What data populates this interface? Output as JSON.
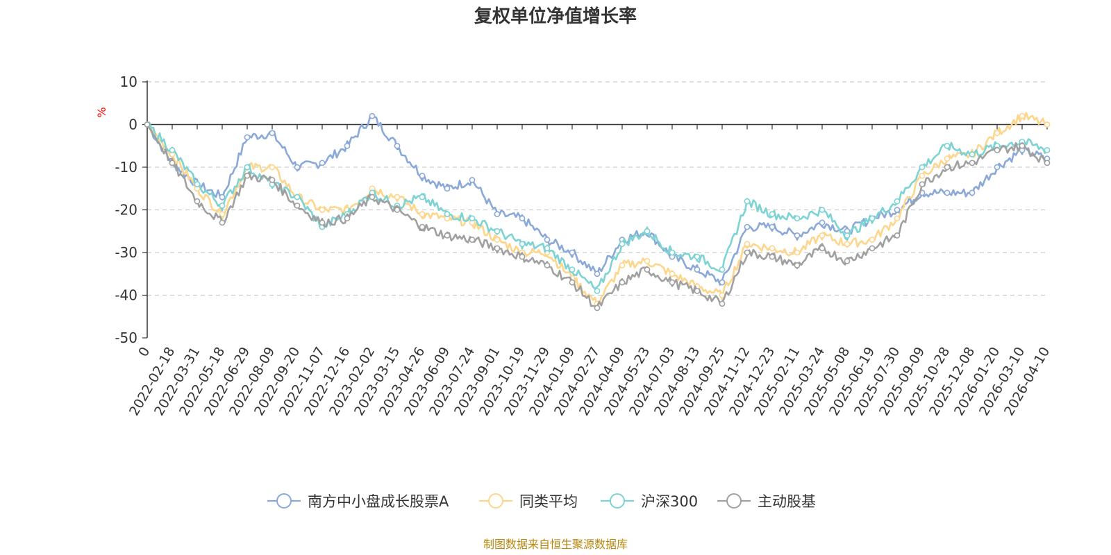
{
  "chart_data": {
    "type": "line",
    "title": "复权单位净值增长率",
    "ylabel": "%",
    "xlabel": "",
    "ylim": [
      -50,
      10
    ],
    "yticks": [
      10,
      0,
      -10,
      -20,
      -30,
      -40,
      -50
    ],
    "grid": true,
    "legend_position": "bottom",
    "categories": [
      "0",
      "2022-02-18",
      "2022-03-31",
      "2022-05-18",
      "2022-06-29",
      "2022-08-09",
      "2022-09-20",
      "2022-11-07",
      "2022-12-16",
      "2023-02-02",
      "2023-03-15",
      "2023-04-26",
      "2023-06-09",
      "2023-07-24",
      "2023-09-01",
      "2023-10-19",
      "2023-11-29",
      "2024-01-09",
      "2024-02-27",
      "2024-04-09",
      "2024-05-23",
      "2024-07-03",
      "2024-08-13",
      "2024-09-25",
      "2024-11-12",
      "2024-12-23",
      "2025-02-11",
      "2025-03-24",
      "2025-05-08",
      "2025-06-19",
      "2025-07-30",
      "2025-09-09",
      "2025-10-28",
      "2025-12-08",
      "2026-01-20",
      "2026-03-10",
      "2026-04-10"
    ],
    "series": [
      {
        "name": "南方中小盘成长股票A",
        "color": "#8aa8d8",
        "values": [
          0,
          -9,
          -14,
          -17,
          -3,
          -2,
          -10,
          -9,
          -5,
          2,
          -5,
          -12,
          -15,
          -13,
          -21,
          -22,
          -27,
          -30,
          -35,
          -27,
          -25,
          -31,
          -34,
          -37,
          -24,
          -24,
          -26,
          -23,
          -25,
          -22,
          -20,
          -16,
          -16,
          -16,
          -10,
          -6,
          -8
        ]
      },
      {
        "name": "同类平均",
        "color": "#fdd68c",
        "values": [
          0,
          -7,
          -15,
          -21,
          -10,
          -10,
          -17,
          -20,
          -20,
          -15,
          -17,
          -21,
          -22,
          -23,
          -27,
          -30,
          -30,
          -36,
          -42,
          -33,
          -32,
          -35,
          -38,
          -40,
          -28,
          -29,
          -30,
          -26,
          -28,
          -27,
          -22,
          -12,
          -8,
          -7,
          -2,
          2,
          0
        ]
      },
      {
        "name": "沪深300",
        "color": "#7dd3d3",
        "values": [
          0,
          -6,
          -14,
          -19,
          -10,
          -14,
          -17,
          -24,
          -21,
          -16,
          -19,
          -17,
          -21,
          -22,
          -25,
          -28,
          -29,
          -34,
          -39,
          -28,
          -25,
          -30,
          -31,
          -34,
          -18,
          -21,
          -22,
          -20,
          -26,
          -22,
          -18,
          -10,
          -5,
          -7,
          -5,
          -4,
          -6
        ]
      },
      {
        "name": "主动股基",
        "color": "#a0a0a0",
        "values": [
          0,
          -9,
          -18,
          -23,
          -12,
          -13,
          -19,
          -23,
          -22,
          -17,
          -20,
          -24,
          -26,
          -27,
          -29,
          -31,
          -33,
          -37,
          -43,
          -37,
          -34,
          -37,
          -39,
          -42,
          -30,
          -31,
          -33,
          -29,
          -32,
          -29,
          -26,
          -14,
          -10,
          -9,
          -6,
          -5,
          -9
        ]
      }
    ]
  },
  "source_text": "制图数据来自恒生聚源数据库",
  "source_color": "#b8860b",
  "axis_label_color": "#ff0000"
}
